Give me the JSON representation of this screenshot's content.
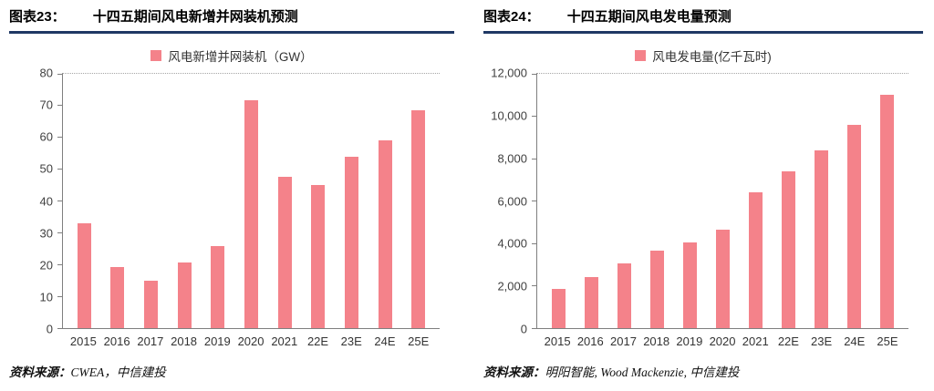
{
  "colors": {
    "accent": "#1F3864",
    "bar": "#F4828A",
    "axis": "#7f7f7f"
  },
  "figures": [
    {
      "tag": "图表23：",
      "title": "十四五期间风电新增并网装机预测",
      "source_label": "资料来源：",
      "source": "CWEA，中信建投"
    },
    {
      "tag": "图表24：",
      "title": "十四五期间风电发电量预测",
      "source_label": "资料来源：",
      "source": "明阳智能, Wood Mackenzie, 中信建投"
    }
  ],
  "chart_data": [
    {
      "type": "bar",
      "title": "十四五期间风电新增并网装机预测",
      "legend": "风电新增并网装机（GW）",
      "legend_position": "top",
      "grid": false,
      "categories": [
        "2015",
        "2016",
        "2017",
        "2018",
        "2019",
        "2020",
        "2021",
        "22E",
        "23E",
        "24E",
        "25E"
      ],
      "values": [
        33,
        19.3,
        15,
        20.6,
        25.7,
        71.7,
        47.6,
        45,
        54,
        59,
        68.5
      ],
      "xlabel": "",
      "ylabel": "",
      "ylim": [
        0,
        80
      ],
      "yticks": [
        0,
        10,
        20,
        30,
        40,
        50,
        60,
        70,
        80
      ],
      "ytick_labels": [
        "0",
        "10",
        "20",
        "30",
        "40",
        "50",
        "60",
        "70",
        "80"
      ]
    },
    {
      "type": "bar",
      "title": "十四五期间风电发电量预测",
      "legend": "风电发电量(亿千瓦时)",
      "legend_position": "top",
      "grid": false,
      "categories": [
        "2015",
        "2016",
        "2017",
        "2018",
        "2019",
        "2020",
        "2021",
        "22E",
        "23E",
        "24E",
        "25E"
      ],
      "values": [
        1850,
        2400,
        3050,
        3650,
        4050,
        4650,
        6400,
        7400,
        8400,
        9600,
        11000
      ],
      "xlabel": "",
      "ylabel": "",
      "ylim": [
        0,
        12000
      ],
      "yticks": [
        0,
        2000,
        4000,
        6000,
        8000,
        10000,
        12000
      ],
      "ytick_labels": [
        "0",
        "2,000",
        "4,000",
        "6,000",
        "8,000",
        "10,000",
        "12,000"
      ]
    }
  ]
}
